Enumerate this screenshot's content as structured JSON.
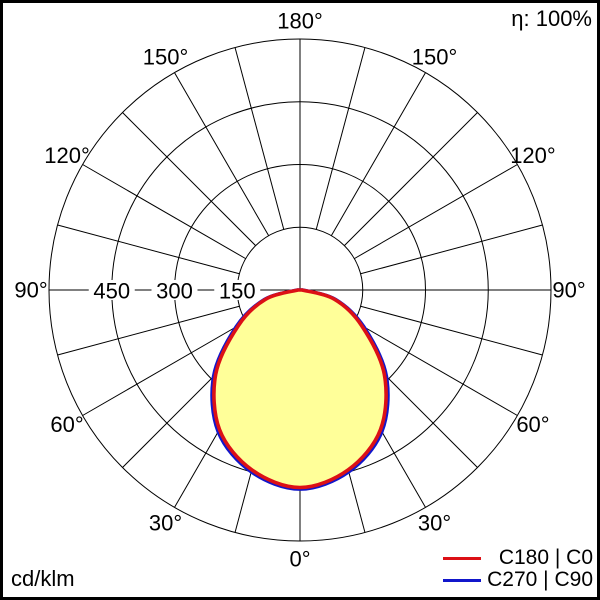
{
  "header": {
    "efficiency": "η: 100%"
  },
  "footer": {
    "units": "cd/klm"
  },
  "chart_data": {
    "type": "polar",
    "subtype": "luminous-intensity-distribution",
    "units": "cd/klm",
    "efficiency": "η: 100%",
    "gamma_deg": [
      0,
      15,
      30,
      45,
      60,
      75,
      90
    ],
    "series": [
      {
        "name": "C180 | C0",
        "color": "#dc1016",
        "values": [
          472,
          445,
          385,
          285,
          170,
          85,
          5
        ]
      },
      {
        "name": "C270 | C90",
        "color": "#1116cb",
        "values": [
          476,
          450,
          391,
          292,
          176,
          88,
          6
        ]
      }
    ],
    "symmetric": true,
    "fill_color": "#ffff99",
    "grid_color": "#000000",
    "rings": [
      150,
      300,
      450,
      600
    ],
    "ring_labels": [
      150,
      300,
      450
    ],
    "r_max": 600,
    "angle_labels_deg": [
      0,
      30,
      60,
      90,
      120,
      150,
      180
    ],
    "spoke_step_deg": 15
  }
}
